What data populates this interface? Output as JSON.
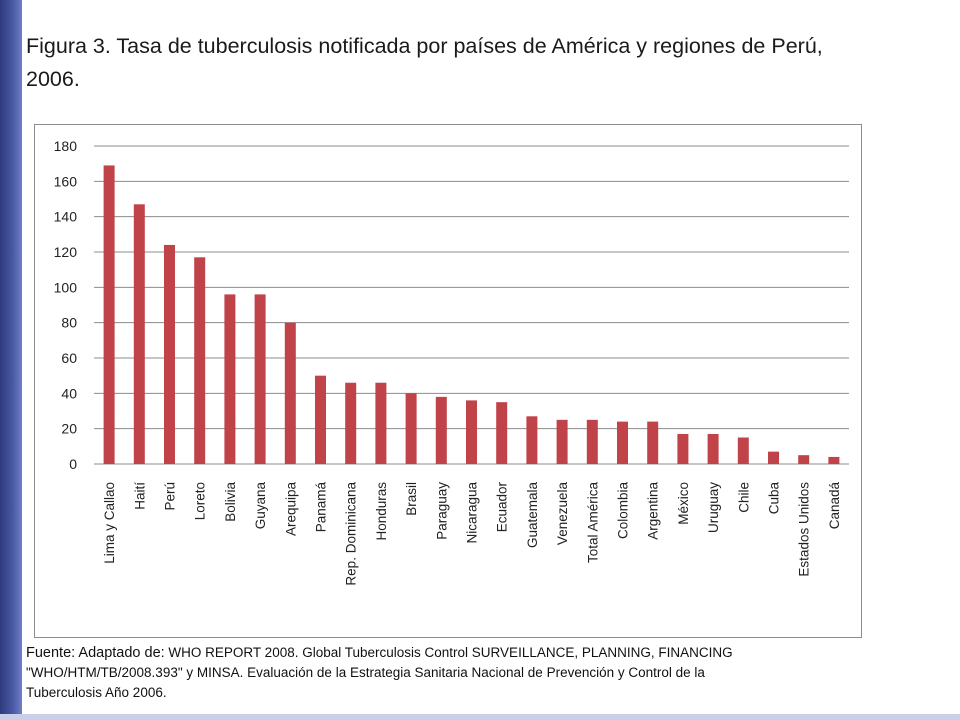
{
  "figure": {
    "title": "Figura 3. Tasa de tuberculosis notificada por países de América y regiones de Perú, 2006."
  },
  "source": {
    "lead": "Fuente: Adaptado de:",
    "line1": " WHO REPORT 2008. Global Tuberculosis Control SURVEILLANCE, PLANNING, FINANCING",
    "line2": "\"WHO/HTM/TB/2008.393\" y MINSA. Evaluación de la Estrategia Sanitaria Nacional de Prevención y Control de la",
    "line3": "Tuberculosis Año 2006."
  },
  "colors": {
    "bar": "#c0434a",
    "grid": "#8c8c8c",
    "stripe": "#3f4c96"
  },
  "chart_data": {
    "type": "bar",
    "title": "",
    "xlabel": "",
    "ylabel": "",
    "ylim": [
      0,
      180
    ],
    "yticks": [
      0,
      20,
      40,
      60,
      80,
      100,
      120,
      140,
      160,
      180
    ],
    "grid": true,
    "legend": "none",
    "categories": [
      "Lima y Callao",
      "Haití",
      "Perú",
      "Loreto",
      "Bolivia",
      "Guyana",
      "Arequipa",
      "Panamá",
      "Rep. Dominicana",
      "Honduras",
      "Brasil",
      "Paraguay",
      "Nicaragua",
      "Ecuador",
      "Guatemala",
      "Venezuela",
      "Total América",
      "Colombia",
      "Argentina",
      "México",
      "Uruguay",
      "Chile",
      "Cuba",
      "Estados Unidos",
      "Canadá"
    ],
    "values": [
      169,
      147,
      124,
      117,
      96,
      96,
      80,
      50,
      46,
      46,
      40,
      38,
      36,
      35,
      27,
      25,
      25,
      24,
      24,
      17,
      17,
      15,
      7,
      5,
      4
    ]
  }
}
